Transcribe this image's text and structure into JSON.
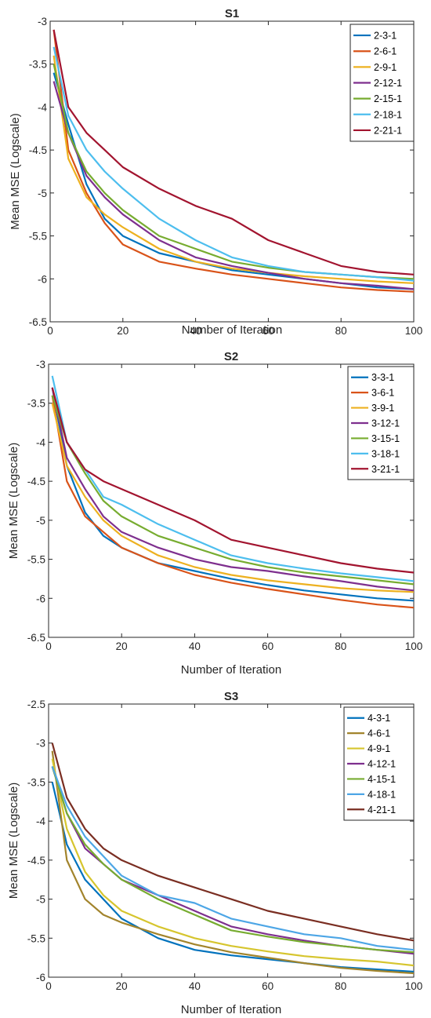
{
  "chart_data": [
    {
      "type": "line",
      "title": "S1",
      "xlabel": "Number of Iteration",
      "ylabel": "Mean MSE (Logscale)",
      "xlim": [
        0,
        100
      ],
      "ylim": [
        -6.5,
        -3
      ],
      "xticks": [
        "0",
        "20",
        "40",
        "60",
        "80",
        "100"
      ],
      "yticks": [
        "-3",
        "-3.5",
        "-4",
        "-4.5",
        "-5",
        "-5.5",
        "-6",
        "-6.5"
      ],
      "legend_position": "top-right",
      "x": [
        1,
        5,
        10,
        15,
        20,
        30,
        40,
        50,
        60,
        70,
        80,
        90,
        100
      ],
      "series": [
        {
          "name": "2-3-1",
          "color": "#0072BD",
          "values": [
            -3.6,
            -4.2,
            -4.9,
            -5.3,
            -5.5,
            -5.7,
            -5.8,
            -5.9,
            -5.95,
            -6.0,
            -6.05,
            -6.1,
            -6.12
          ]
        },
        {
          "name": "2-6-1",
          "color": "#D95319",
          "values": [
            -3.1,
            -4.5,
            -5.0,
            -5.35,
            -5.6,
            -5.8,
            -5.88,
            -5.95,
            -6.0,
            -6.05,
            -6.1,
            -6.13,
            -6.15
          ]
        },
        {
          "name": "2-9-1",
          "color": "#EDB120",
          "values": [
            -3.4,
            -4.6,
            -5.05,
            -5.25,
            -5.4,
            -5.65,
            -5.8,
            -5.88,
            -5.93,
            -5.97,
            -6.0,
            -6.03,
            -6.05
          ]
        },
        {
          "name": "2-12-1",
          "color": "#7E2F8E",
          "values": [
            -3.7,
            -4.3,
            -4.8,
            -5.05,
            -5.25,
            -5.55,
            -5.75,
            -5.85,
            -5.93,
            -6.0,
            -6.05,
            -6.08,
            -6.12
          ]
        },
        {
          "name": "2-15-1",
          "color": "#77AC30",
          "values": [
            -3.5,
            -4.3,
            -4.75,
            -5.0,
            -5.2,
            -5.5,
            -5.65,
            -5.8,
            -5.87,
            -5.92,
            -5.95,
            -5.98,
            -6.0
          ]
        },
        {
          "name": "2-18-1",
          "color": "#4DBEEE",
          "values": [
            -3.3,
            -4.1,
            -4.5,
            -4.75,
            -4.95,
            -5.3,
            -5.55,
            -5.75,
            -5.85,
            -5.92,
            -5.95,
            -5.98,
            -6.02
          ]
        },
        {
          "name": "2-21-1",
          "color": "#A2142F",
          "values": [
            -3.1,
            -4.0,
            -4.3,
            -4.5,
            -4.7,
            -4.95,
            -5.15,
            -5.3,
            -5.55,
            -5.7,
            -5.85,
            -5.92,
            -5.95
          ]
        }
      ]
    },
    {
      "type": "line",
      "title": "S2",
      "xlabel": "Number of Iteration",
      "ylabel": "Mean MSE (Logscale)",
      "xlim": [
        0,
        100
      ],
      "ylim": [
        -6.5,
        -3
      ],
      "xticks": [
        "0",
        "20",
        "40",
        "60",
        "80",
        "100"
      ],
      "yticks": [
        "-3",
        "-3.5",
        "-4",
        "-4.5",
        "-5",
        "-5.5",
        "-6",
        "-6.5"
      ],
      "legend_position": "top-right",
      "x": [
        1,
        5,
        10,
        15,
        20,
        30,
        40,
        50,
        60,
        70,
        80,
        90,
        100
      ],
      "series": [
        {
          "name": "3-3-1",
          "color": "#0072BD",
          "values": [
            -3.3,
            -4.3,
            -4.9,
            -5.2,
            -5.35,
            -5.55,
            -5.65,
            -5.75,
            -5.83,
            -5.9,
            -5.95,
            -6.0,
            -6.03
          ]
        },
        {
          "name": "3-6-1",
          "color": "#D95319",
          "values": [
            -3.4,
            -4.5,
            -4.95,
            -5.15,
            -5.35,
            -5.55,
            -5.7,
            -5.8,
            -5.88,
            -5.95,
            -6.02,
            -6.08,
            -6.12
          ]
        },
        {
          "name": "3-9-1",
          "color": "#EDB120",
          "values": [
            -3.5,
            -4.3,
            -4.7,
            -5.0,
            -5.2,
            -5.45,
            -5.6,
            -5.7,
            -5.77,
            -5.82,
            -5.87,
            -5.9,
            -5.92
          ]
        },
        {
          "name": "3-12-1",
          "color": "#7E2F8E",
          "values": [
            -3.3,
            -4.2,
            -4.6,
            -4.95,
            -5.15,
            -5.35,
            -5.5,
            -5.6,
            -5.65,
            -5.72,
            -5.78,
            -5.85,
            -5.9
          ]
        },
        {
          "name": "3-15-1",
          "color": "#77AC30",
          "values": [
            -3.4,
            -4.0,
            -4.4,
            -4.75,
            -4.95,
            -5.2,
            -5.35,
            -5.5,
            -5.6,
            -5.67,
            -5.72,
            -5.77,
            -5.82
          ]
        },
        {
          "name": "3-18-1",
          "color": "#4DBEEE",
          "values": [
            -3.15,
            -4.0,
            -4.35,
            -4.7,
            -4.8,
            -5.05,
            -5.25,
            -5.45,
            -5.55,
            -5.62,
            -5.68,
            -5.73,
            -5.78
          ]
        },
        {
          "name": "3-21-1",
          "color": "#A2142F",
          "values": [
            -3.3,
            -4.0,
            -4.35,
            -4.5,
            -4.6,
            -4.8,
            -5.0,
            -5.25,
            -5.35,
            -5.45,
            -5.55,
            -5.62,
            -5.67
          ]
        }
      ]
    },
    {
      "type": "line",
      "title": "S3",
      "xlabel": "Number of Iteration",
      "ylabel": "Mean MSE (Logscale)",
      "xlim": [
        0,
        100
      ],
      "ylim": [
        -6,
        -2.5
      ],
      "xticks": [
        "0",
        "20",
        "40",
        "60",
        "80",
        "100"
      ],
      "yticks": [
        "-2.5",
        "-3",
        "-3.5",
        "-4",
        "-4.5",
        "-5",
        "-5.5",
        "-6"
      ],
      "legend_position": "top-right",
      "x": [
        1,
        5,
        10,
        15,
        20,
        30,
        40,
        50,
        60,
        70,
        80,
        90,
        100
      ],
      "series": [
        {
          "name": "4-3-1",
          "color": "#0072BD",
          "values": [
            -3.5,
            -4.3,
            -4.75,
            -5.0,
            -5.25,
            -5.5,
            -5.65,
            -5.72,
            -5.77,
            -5.82,
            -5.87,
            -5.9,
            -5.93
          ]
        },
        {
          "name": "4-6-1",
          "color": "#A2842C",
          "values": [
            -3.1,
            -4.5,
            -5.0,
            -5.2,
            -5.3,
            -5.45,
            -5.58,
            -5.68,
            -5.75,
            -5.82,
            -5.88,
            -5.92,
            -5.95
          ]
        },
        {
          "name": "4-9-1",
          "color": "#D6C52E",
          "values": [
            -3.2,
            -4.1,
            -4.65,
            -4.95,
            -5.15,
            -5.35,
            -5.5,
            -5.6,
            -5.67,
            -5.73,
            -5.77,
            -5.8,
            -5.85
          ]
        },
        {
          "name": "4-12-1",
          "color": "#7E2F8E",
          "values": [
            -3.3,
            -3.9,
            -4.35,
            -4.55,
            -4.75,
            -4.95,
            -5.15,
            -5.35,
            -5.45,
            -5.53,
            -5.6,
            -5.65,
            -5.7
          ]
        },
        {
          "name": "4-15-1",
          "color": "#77AC30",
          "values": [
            -3.3,
            -3.9,
            -4.3,
            -4.55,
            -4.75,
            -5.0,
            -5.2,
            -5.4,
            -5.48,
            -5.55,
            -5.6,
            -5.65,
            -5.68
          ]
        },
        {
          "name": "4-18-1",
          "color": "#4DA6E6",
          "values": [
            -3.3,
            -3.8,
            -4.2,
            -4.45,
            -4.7,
            -4.95,
            -5.05,
            -5.25,
            -5.35,
            -5.45,
            -5.5,
            -5.6,
            -5.65
          ]
        },
        {
          "name": "4-21-1",
          "color": "#7A2E22",
          "values": [
            -3.0,
            -3.7,
            -4.1,
            -4.35,
            -4.5,
            -4.7,
            -4.85,
            -5.0,
            -5.15,
            -5.25,
            -5.35,
            -5.45,
            -5.53
          ]
        }
      ]
    }
  ]
}
